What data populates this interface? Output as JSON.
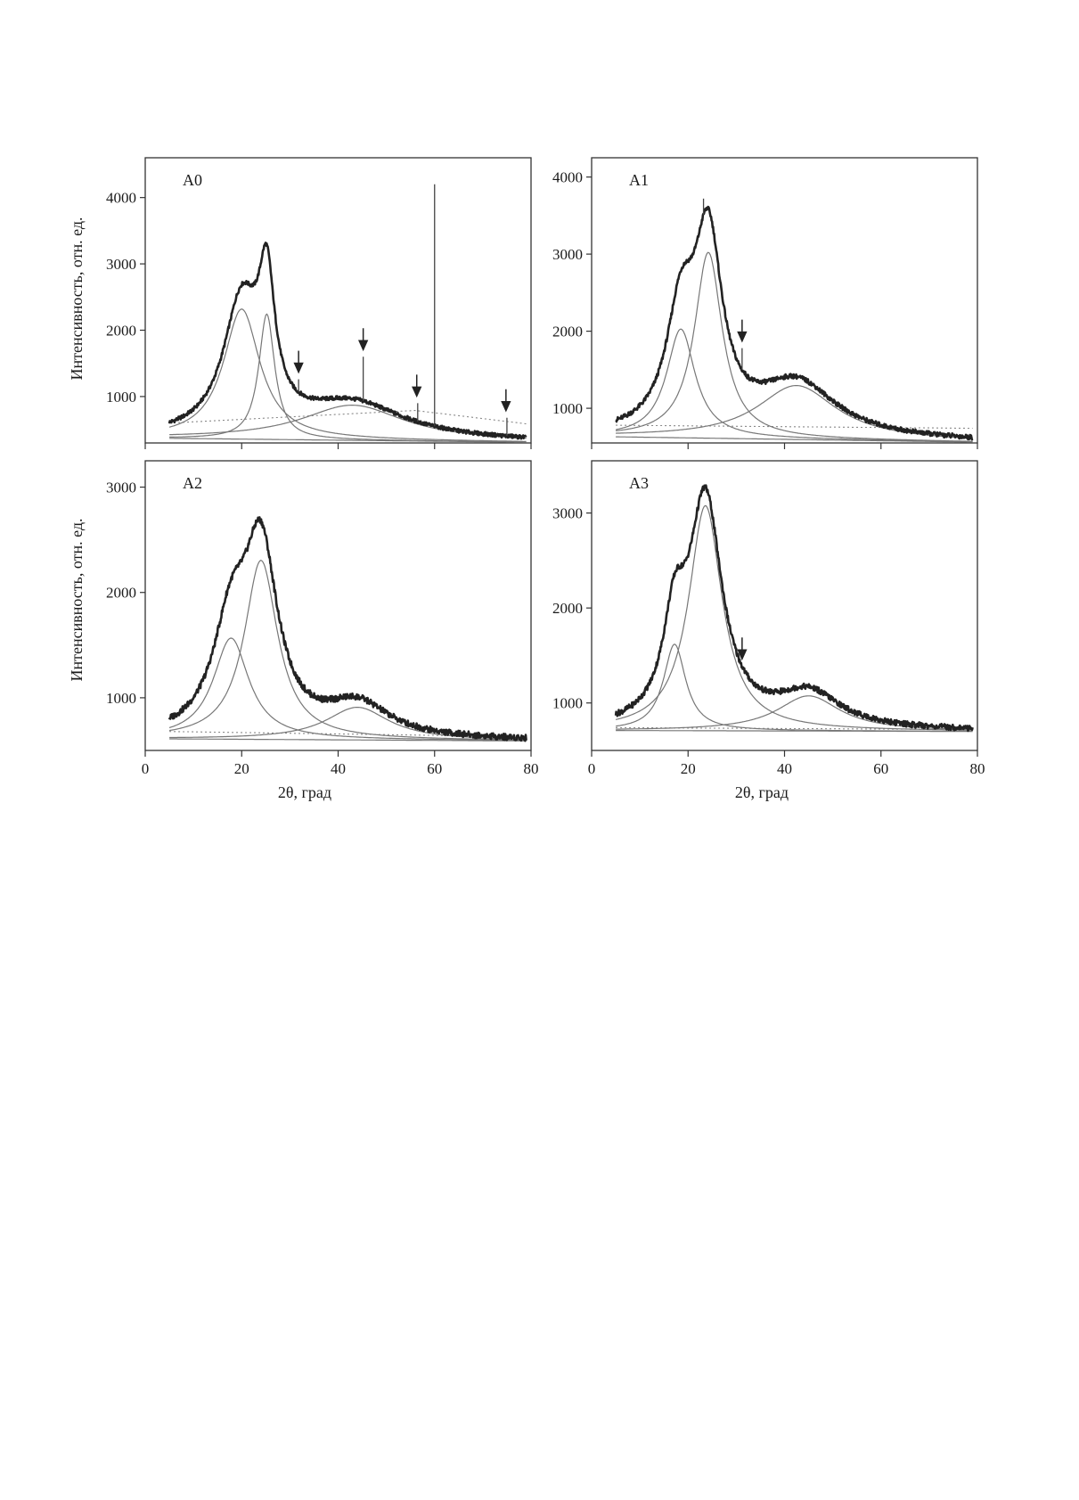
{
  "figure": {
    "ylabel": "Интенсивность, отн. ед.",
    "xlabel": "2θ, град"
  },
  "colors": {
    "experimental": "#222222",
    "fit": "#555555",
    "component": "#777777",
    "baseline": "#888888"
  },
  "chart_data": [
    {
      "type": "line",
      "panel": "A0",
      "xlabel": "2θ, град",
      "ylabel": "Интенсивность, отн. ед.",
      "xlim": [
        0,
        80
      ],
      "ylim": [
        300,
        4600
      ],
      "x_ticks": [
        0,
        20,
        40,
        60,
        80
      ],
      "y_ticks": [
        1000,
        2000,
        3000,
        4000
      ],
      "x_range": [
        5,
        79
      ],
      "x_tick_labels_shown": false,
      "y_tick_labels_shown": true,
      "components": [
        {
          "center": 20,
          "height": 1960,
          "width": 4.6
        },
        {
          "center": 25.2,
          "height": 1890,
          "width": 2.0
        },
        {
          "center": 43,
          "height": 530,
          "width": 13
        }
      ],
      "base_curve": [
        [
          5,
          370
        ],
        [
          80,
          310
        ]
      ],
      "background": [
        [
          5,
          600
        ],
        [
          56,
          790
        ],
        [
          80,
          580
        ]
      ],
      "sharp_peaks": [
        {
          "x": 31.8,
          "y": 1260
        },
        {
          "x": 45.2,
          "y": 1600
        },
        {
          "x": 56.5,
          "y": 900
        },
        {
          "x": 60,
          "y": 4200
        },
        {
          "x": 75,
          "y": 680
        }
      ],
      "arrows": [
        31.8,
        45.2,
        56.3,
        74.8
      ]
    },
    {
      "type": "line",
      "panel": "A1",
      "xlabel": "2θ, град",
      "ylabel": "Интенсивность, отн. ед.",
      "xlim": [
        0,
        80
      ],
      "ylim": [
        550,
        4250
      ],
      "x_ticks": [
        0,
        20,
        40,
        60,
        80
      ],
      "y_ticks": [
        1000,
        2000,
        3000,
        4000
      ],
      "x_range": [
        5,
        79
      ],
      "x_tick_labels_shown": false,
      "y_tick_labels_shown": true,
      "components": [
        {
          "center": 18.5,
          "height": 1410,
          "width": 3.6
        },
        {
          "center": 24.2,
          "height": 2410,
          "width": 3.5
        },
        {
          "center": 42.5,
          "height": 700,
          "width": 10
        }
      ],
      "base_curve": [
        [
          5,
          630
        ],
        [
          80,
          560
        ]
      ],
      "background": [
        [
          5,
          780
        ],
        [
          80,
          740
        ]
      ],
      "sharp_peaks": [
        {
          "x": 23.2,
          "y": 3720
        },
        {
          "x": 31.2,
          "y": 1780
        }
      ],
      "arrows": [
        31.2
      ]
    },
    {
      "type": "line",
      "panel": "A2",
      "xlabel": "2θ, град",
      "ylabel": "Интенсивность, отн. ед.",
      "xlim": [
        0,
        80
      ],
      "ylim": [
        500,
        3250
      ],
      "x_ticks": [
        0,
        20,
        40,
        60,
        80
      ],
      "y_ticks": [
        1000,
        2000,
        3000
      ],
      "x_range": [
        5,
        79
      ],
      "x_tick_labels_shown": true,
      "y_tick_labels_shown": true,
      "components": [
        {
          "center": 17.8,
          "height": 960,
          "width": 4.5
        },
        {
          "center": 24,
          "height": 1700,
          "width": 4.2
        },
        {
          "center": 44,
          "height": 310,
          "width": 8
        }
      ],
      "base_curve": [
        [
          5,
          610
        ],
        [
          80,
          590
        ]
      ],
      "background": [
        [
          5,
          680
        ],
        [
          80,
          630
        ]
      ],
      "sharp_peaks": [],
      "arrows": []
    },
    {
      "type": "line",
      "panel": "A3",
      "xlabel": "2θ, град",
      "ylabel": "",
      "xlim": [
        0,
        80
      ],
      "ylim": [
        500,
        3550
      ],
      "x_ticks": [
        0,
        20,
        40,
        60,
        80
      ],
      "y_ticks": [
        1000,
        2000,
        3000
      ],
      "x_range": [
        5,
        79
      ],
      "x_tick_labels_shown": true,
      "y_tick_labels_shown": true,
      "components": [
        {
          "center": 17.2,
          "height": 910,
          "width": 2.8
        },
        {
          "center": 23.6,
          "height": 2370,
          "width": 4.2
        },
        {
          "center": 45,
          "height": 370,
          "width": 8
        }
      ],
      "base_curve": [
        [
          5,
          710
        ],
        [
          80,
          700
        ]
      ],
      "background": [
        [
          5,
          740
        ],
        [
          80,
          720
        ]
      ],
      "sharp_peaks": [],
      "arrows": [
        31.2
      ]
    }
  ]
}
